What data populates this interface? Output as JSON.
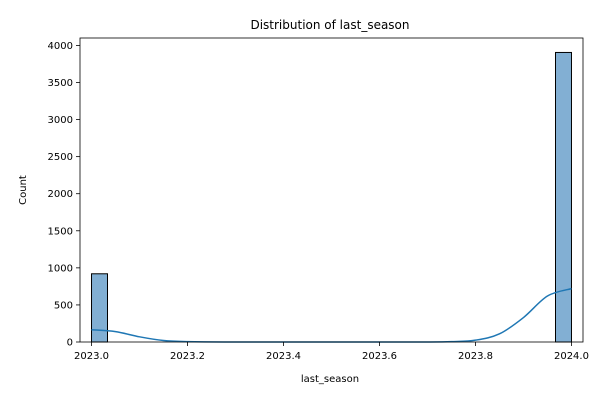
{
  "chart_data": {
    "type": "bar",
    "title": "Distribution of last_season",
    "xlabel": "last_season",
    "ylabel": "Count",
    "xlim": [
      2022.976,
      2024.024
    ],
    "ylim": [
      0,
      4100
    ],
    "xticks": [
      "2023.0",
      "2023.2",
      "2023.4",
      "2023.6",
      "2023.8",
      "2024.0"
    ],
    "yticks": [
      "0",
      "500",
      "1000",
      "1500",
      "2000",
      "2500",
      "3000",
      "3500",
      "4000"
    ],
    "grid": false,
    "legend": "none",
    "bars": [
      {
        "x0": 2023.0,
        "x1": 2023.0333,
        "value": 920
      },
      {
        "x0": 2023.9667,
        "x1": 2024.0,
        "value": 3905
      }
    ],
    "kde": {
      "x": [
        2023.0,
        2023.05,
        2023.1,
        2023.15,
        2023.2,
        2023.3,
        2023.4,
        2023.5,
        2023.6,
        2023.7,
        2023.75,
        2023.8,
        2023.85,
        2023.9,
        2023.95,
        2024.0
      ],
      "y": [
        165,
        140,
        70,
        20,
        5,
        0,
        0,
        0,
        0,
        0,
        5,
        25,
        110,
        330,
        620,
        720
      ]
    },
    "colors": {
      "bar_fill": "#82afd3",
      "bar_edge": "#000000",
      "kde_line": "#1f77b4"
    }
  }
}
